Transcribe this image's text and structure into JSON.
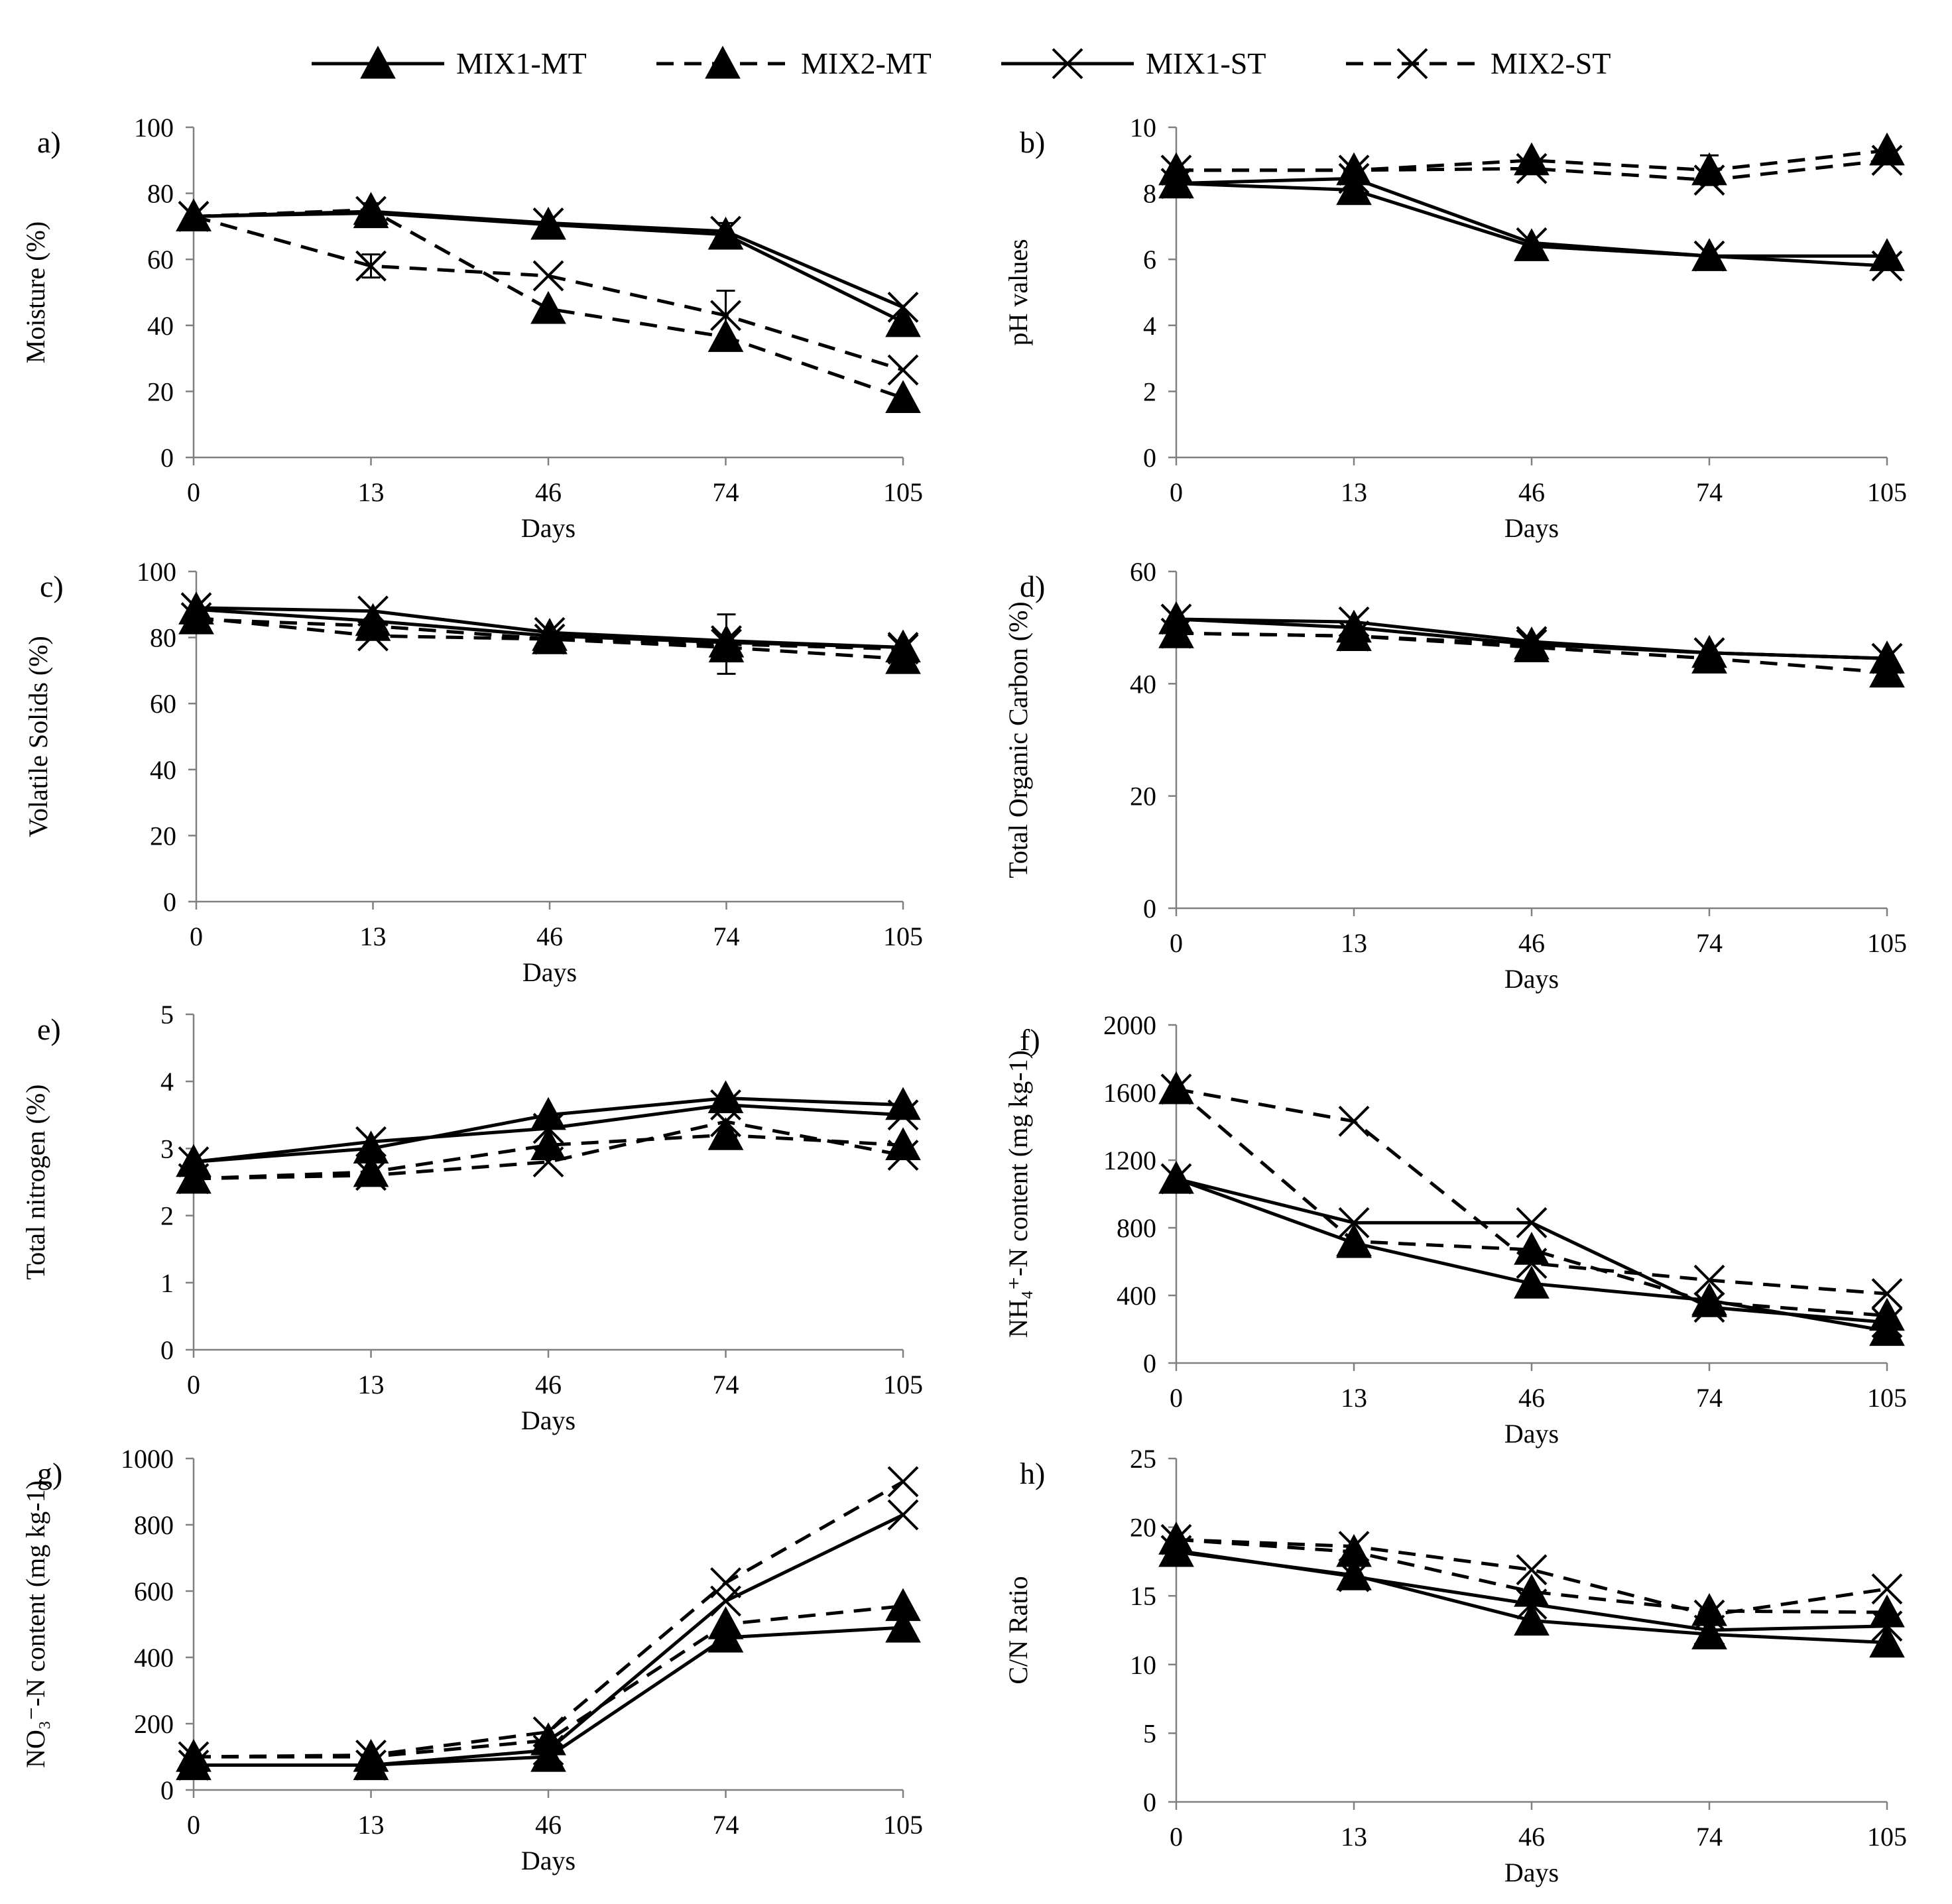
{
  "legend": [
    {
      "label": "MIX1-MT",
      "dash": false,
      "marker": "triangle"
    },
    {
      "label": "MIX2-MT",
      "dash": true,
      "marker": "triangle"
    },
    {
      "label": "MIX1-ST",
      "dash": false,
      "marker": "x"
    },
    {
      "label": "MIX2-ST",
      "dash": true,
      "marker": "x"
    }
  ],
  "colors": {
    "line": "#000000",
    "axis": "#808080",
    "background": "#ffffff"
  },
  "chart_data": [
    {
      "id": "a",
      "panel_label": "a)",
      "type": "line",
      "ylabel": "Moisture (%)",
      "xlabel": "Days",
      "categories": [
        "0",
        "13",
        "46",
        "74",
        "105"
      ],
      "ylim": [
        0,
        100
      ],
      "yticks": [
        0,
        20,
        40,
        60,
        80,
        100
      ],
      "ytick_labels": [
        "0",
        "20",
        "40",
        "60",
        "80",
        "100"
      ],
      "series": [
        {
          "name": "MIX1-MT",
          "values": [
            73,
            74,
            70.5,
            67.5,
            41
          ]
        },
        {
          "name": "MIX2-MT",
          "values": [
            73,
            75,
            45,
            36.5,
            18
          ]
        },
        {
          "name": "MIX1-ST",
          "values": [
            73,
            74.5,
            71,
            68.5,
            45.5
          ]
        },
        {
          "name": "MIX2-ST",
          "values": [
            73,
            58,
            55,
            43,
            26.5
          ]
        }
      ],
      "error_bars": [
        {
          "series": "MIX2-ST",
          "index": 1,
          "err": 3.5
        },
        {
          "series": "MIX2-ST",
          "index": 3,
          "err": 7.5
        },
        {
          "series": "MIX1-ST",
          "index": 3,
          "err": 2.5
        },
        {
          "series": "MIX2-MT",
          "index": 1,
          "err": 2
        }
      ]
    },
    {
      "id": "b",
      "panel_label": "b)",
      "type": "line",
      "ylabel": "pH values",
      "xlabel": "Days",
      "categories": [
        "0",
        "13",
        "46",
        "74",
        "105"
      ],
      "ylim": [
        0,
        10
      ],
      "yticks": [
        0,
        2,
        4,
        6,
        8,
        10
      ],
      "ytick_labels": [
        "0",
        "2",
        "4",
        "6",
        "8",
        "10"
      ],
      "series": [
        {
          "name": "MIX1-MT",
          "values": [
            8.3,
            8.1,
            6.4,
            6.1,
            6.1
          ]
        },
        {
          "name": "MIX2-MT",
          "values": [
            8.7,
            8.7,
            9.0,
            8.7,
            9.3
          ]
        },
        {
          "name": "MIX1-ST",
          "values": [
            8.3,
            8.45,
            6.5,
            6.1,
            5.8
          ]
        },
        {
          "name": "MIX2-ST",
          "values": [
            8.7,
            8.7,
            8.75,
            8.4,
            9.0
          ]
        }
      ],
      "error_bars": [
        {
          "series": "MIX2-MT",
          "index": 3,
          "err": 0.45
        }
      ]
    },
    {
      "id": "c",
      "panel_label": "c)",
      "type": "line",
      "ylabel": "Volatile Solids (%)",
      "xlabel": "Days",
      "categories": [
        "0",
        "13",
        "46",
        "74",
        "105"
      ],
      "ylim": [
        0,
        100
      ],
      "yticks": [
        0,
        20,
        40,
        60,
        80,
        100
      ],
      "ytick_labels": [
        "0",
        "20",
        "40",
        "60",
        "80",
        "100"
      ],
      "series": [
        {
          "name": "MIX1-MT",
          "values": [
            88.5,
            85,
            80.5,
            78.5,
            77
          ]
        },
        {
          "name": "MIX2-MT",
          "values": [
            85.5,
            83.5,
            79.5,
            77,
            73.5
          ]
        },
        {
          "name": "MIX1-ST",
          "values": [
            89,
            88,
            81.5,
            79,
            77
          ]
        },
        {
          "name": "MIX2-ST",
          "values": [
            86,
            80.5,
            79.5,
            78,
            76.5
          ]
        }
      ],
      "error_bars": [
        {
          "series": "MIX2-ST",
          "index": 3,
          "err": 9
        }
      ]
    },
    {
      "id": "d",
      "panel_label": "d)",
      "type": "line",
      "ylabel": "Total Organic Carbon (%)",
      "xlabel": "Days",
      "categories": [
        "0",
        "13",
        "46",
        "74",
        "105"
      ],
      "ylim": [
        0,
        60
      ],
      "yticks": [
        0,
        20,
        40,
        60
      ],
      "ytick_labels": [
        "0",
        "20",
        "40",
        "60"
      ],
      "series": [
        {
          "name": "MIX1-MT",
          "values": [
            51.5,
            50,
            47,
            45.5,
            44.5
          ]
        },
        {
          "name": "MIX2-MT",
          "values": [
            49,
            48.5,
            46.5,
            44.5,
            42
          ]
        },
        {
          "name": "MIX1-ST",
          "values": [
            51.5,
            51,
            47.5,
            45.5,
            44.5
          ]
        },
        {
          "name": "MIX2-ST",
          "values": [
            49,
            48.5,
            47,
            45.5,
            44.5
          ]
        }
      ],
      "error_bars": []
    },
    {
      "id": "e",
      "panel_label": "e)",
      "type": "line",
      "ylabel": "Total nitrogen (%)",
      "xlabel": "Days",
      "categories": [
        "0",
        "13",
        "46",
        "74",
        "105"
      ],
      "ylim": [
        0,
        5
      ],
      "yticks": [
        0,
        1,
        2,
        3,
        4,
        5
      ],
      "ytick_labels": [
        "0",
        "1",
        "2",
        "3",
        "4",
        "5"
      ],
      "series": [
        {
          "name": "MIX1-MT",
          "values": [
            2.8,
            3.0,
            3.5,
            3.75,
            3.65
          ]
        },
        {
          "name": "MIX2-MT",
          "values": [
            2.55,
            2.65,
            3.05,
            3.2,
            3.05
          ]
        },
        {
          "name": "MIX1-ST",
          "values": [
            2.8,
            3.1,
            3.3,
            3.65,
            3.5
          ]
        },
        {
          "name": "MIX2-ST",
          "values": [
            2.55,
            2.6,
            2.8,
            3.4,
            2.9
          ]
        }
      ],
      "error_bars": []
    },
    {
      "id": "f",
      "panel_label": "f)",
      "type": "line",
      "ylabel": "NH₄⁺-N content (mg kg-1)",
      "xlabel": "Days",
      "categories": [
        "0",
        "13",
        "46",
        "74",
        "105"
      ],
      "ylim": [
        0,
        2000
      ],
      "yticks": [
        0,
        400,
        800,
        1200,
        1600,
        2000
      ],
      "ytick_labels": [
        "0",
        "400",
        "800",
        "1200",
        "1600",
        "2000"
      ],
      "series": [
        {
          "name": "MIX1-MT",
          "values": [
            1090,
            710,
            470,
            370,
            190
          ]
        },
        {
          "name": "MIX2-MT",
          "values": [
            1620,
            720,
            670,
            360,
            280
          ]
        },
        {
          "name": "MIX1-ST",
          "values": [
            1090,
            830,
            830,
            330,
            240
          ]
        },
        {
          "name": "MIX2-ST",
          "values": [
            1620,
            1430,
            590,
            490,
            410
          ]
        }
      ],
      "error_bars": []
    },
    {
      "id": "g",
      "panel_label": "g)",
      "type": "line",
      "ylabel": "NO₃⁻-N content (mg kg-1)",
      "xlabel": "Days",
      "categories": [
        "0",
        "13",
        "46",
        "74",
        "105"
      ],
      "ylim": [
        0,
        1000
      ],
      "yticks": [
        0,
        200,
        400,
        600,
        800,
        1000
      ],
      "ytick_labels": [
        "0",
        "200",
        "400",
        "600",
        "800",
        "1000"
      ],
      "series": [
        {
          "name": "MIX1-MT",
          "values": [
            75,
            75,
            100,
            460,
            490
          ]
        },
        {
          "name": "MIX2-MT",
          "values": [
            100,
            100,
            150,
            500,
            555
          ]
        },
        {
          "name": "MIX1-ST",
          "values": [
            75,
            75,
            120,
            570,
            830
          ]
        },
        {
          "name": "MIX2-ST",
          "values": [
            100,
            105,
            175,
            625,
            930
          ]
        }
      ],
      "error_bars": []
    },
    {
      "id": "h",
      "panel_label": "h)",
      "type": "line",
      "ylabel": "C/N Ratio",
      "xlabel": "Days",
      "categories": [
        "0",
        "13",
        "46",
        "74",
        "105"
      ],
      "ylim": [
        0,
        25
      ],
      "yticks": [
        0,
        5,
        10,
        15,
        20,
        25
      ],
      "ytick_labels": [
        "0",
        "5",
        "10",
        "15",
        "20",
        "25"
      ],
      "series": [
        {
          "name": "MIX1-MT",
          "values": [
            18.2,
            16.5,
            13.2,
            12.2,
            11.6
          ]
        },
        {
          "name": "MIX2-MT",
          "values": [
            19.1,
            18.2,
            15.3,
            13.9,
            13.8
          ]
        },
        {
          "name": "MIX1-ST",
          "values": [
            18.3,
            16.4,
            14.4,
            12.5,
            12.8
          ]
        },
        {
          "name": "MIX2-ST",
          "values": [
            19.1,
            18.6,
            16.9,
            13.6,
            15.5
          ]
        }
      ],
      "error_bars": []
    }
  ]
}
